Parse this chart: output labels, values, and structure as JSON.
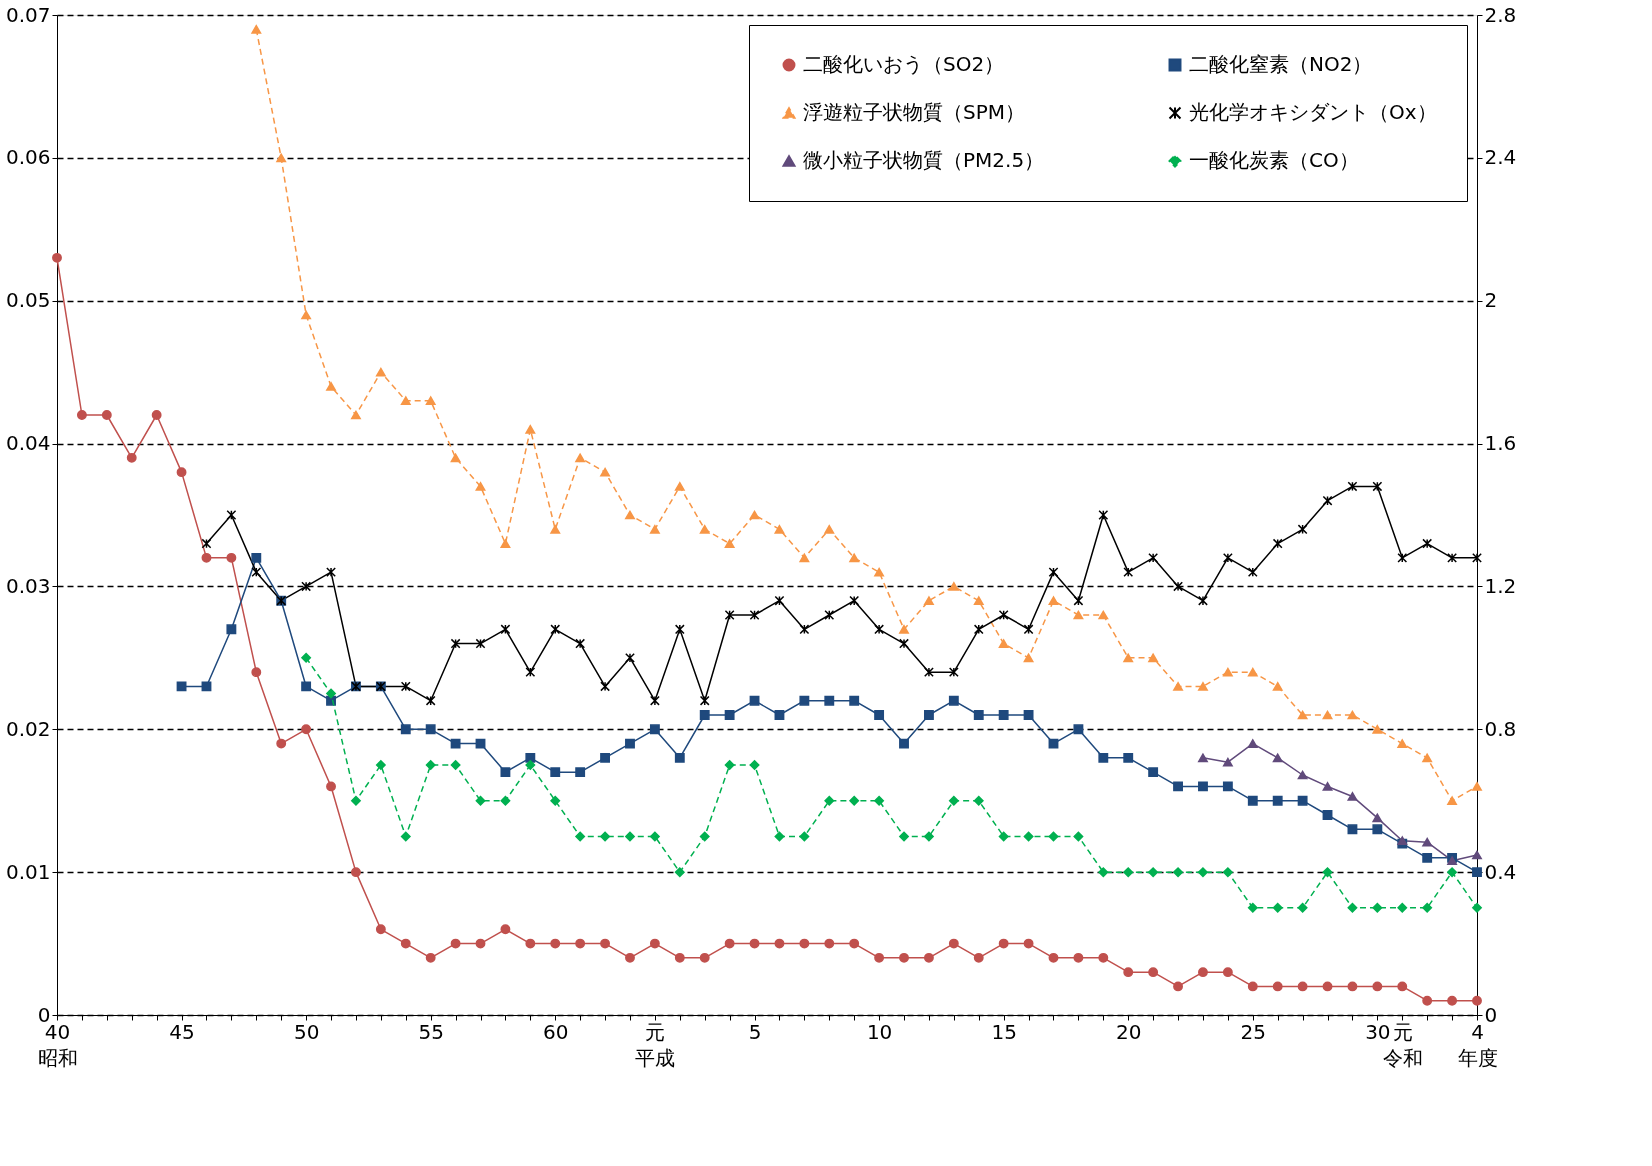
{
  "chart_data": {
    "type": "line",
    "categories": [
      "40昭和",
      null,
      null,
      null,
      null,
      "45",
      null,
      null,
      null,
      null,
      "50",
      null,
      null,
      null,
      null,
      "55",
      null,
      null,
      null,
      null,
      "60",
      null,
      null,
      null,
      "元平成",
      null,
      null,
      null,
      "5",
      null,
      null,
      null,
      null,
      "10",
      null,
      null,
      null,
      null,
      "15",
      null,
      null,
      null,
      null,
      "20",
      null,
      null,
      null,
      null,
      "25",
      null,
      null,
      null,
      null,
      "30",
      "元令和",
      null,
      null,
      "4年度"
    ],
    "ylim": [
      0,
      0.07
    ],
    "yticks": [
      0,
      0.01,
      0.02,
      0.03,
      0.04,
      0.05,
      0.06,
      0.07
    ],
    "y2lim": [
      0,
      2.8
    ],
    "y2ticks": [
      0,
      0.4,
      0.8,
      1.2,
      1.6,
      2,
      2.4,
      2.8
    ],
    "grid": "y",
    "legend": "top right",
    "series": [
      {
        "name": "二酸化いおう（SO2）",
        "color": "#c0504d",
        "marker": "circle",
        "line_style": "solid",
        "values": [
          0.053,
          0.042,
          0.042,
          0.039,
          0.042,
          0.038,
          0.032,
          0.032,
          0.024,
          0.019,
          0.02,
          0.016,
          0.01,
          0.006,
          0.005,
          0.004,
          0.005,
          0.005,
          0.006,
          0.005,
          0.005,
          0.005,
          0.005,
          0.004,
          0.005,
          0.004,
          0.004,
          0.005,
          0.005,
          0.005,
          0.005,
          0.005,
          0.005,
          0.004,
          0.004,
          0.004,
          0.005,
          0.004,
          0.005,
          0.005,
          0.004,
          0.004,
          0.004,
          0.003,
          0.003,
          0.002,
          0.003,
          0.003,
          0.002,
          0.002,
          0.002,
          0.002,
          0.002,
          0.002,
          0.002,
          0.001,
          0.001,
          0.001
        ]
      },
      {
        "name": "二酸化窒素（NO2）",
        "color": "#1f497d",
        "marker": "square",
        "line_style": "solid",
        "values": [
          null,
          null,
          null,
          null,
          null,
          0.023,
          0.023,
          0.027,
          0.032,
          0.029,
          0.023,
          0.022,
          0.023,
          0.023,
          0.02,
          0.02,
          0.019,
          0.019,
          0.017,
          0.018,
          0.017,
          0.017,
          0.018,
          0.019,
          0.02,
          0.018,
          0.021,
          0.021,
          0.022,
          0.021,
          0.022,
          0.022,
          0.022,
          0.021,
          0.019,
          0.021,
          0.022,
          0.021,
          0.021,
          0.021,
          0.019,
          0.02,
          0.018,
          0.018,
          0.017,
          0.016,
          0.016,
          0.016,
          0.015,
          0.015,
          0.015,
          0.014,
          0.013,
          0.013,
          0.012,
          0.011,
          0.011,
          0.01
        ]
      },
      {
        "name": "浮遊粒子状物質（SPM）",
        "color": "#f79646",
        "marker": "triangle",
        "line_style": "dashed",
        "values": [
          null,
          null,
          null,
          null,
          null,
          null,
          null,
          null,
          0.069,
          0.06,
          0.049,
          0.044,
          0.042,
          0.045,
          0.043,
          0.043,
          0.039,
          0.037,
          0.033,
          0.041,
          0.034,
          0.039,
          0.038,
          0.035,
          0.034,
          0.037,
          0.034,
          0.033,
          0.035,
          0.034,
          0.032,
          0.034,
          0.032,
          0.031,
          0.027,
          0.029,
          0.03,
          0.029,
          0.026,
          0.025,
          0.029,
          0.028,
          0.028,
          0.025,
          0.025,
          0.023,
          0.023,
          0.024,
          0.024,
          0.023,
          0.021,
          0.021,
          0.021,
          0.02,
          0.019,
          0.018,
          0.015,
          0.016
        ]
      },
      {
        "name": "光化学オキシダント（Ox）",
        "color": "#000000",
        "marker": "cross",
        "line_style": "solid",
        "values": [
          null,
          null,
          null,
          null,
          null,
          null,
          0.033,
          0.035,
          0.031,
          0.029,
          0.03,
          0.031,
          0.023,
          0.023,
          0.023,
          0.022,
          0.026,
          0.026,
          0.027,
          0.024,
          0.027,
          0.026,
          0.023,
          0.025,
          0.022,
          0.027,
          0.022,
          0.028,
          0.028,
          0.029,
          0.027,
          0.028,
          0.029,
          0.027,
          0.026,
          0.024,
          0.024,
          0.027,
          0.028,
          0.027,
          0.031,
          0.029,
          0.035,
          0.031,
          0.032,
          0.03,
          0.029,
          0.032,
          0.031,
          0.033,
          0.034,
          0.036,
          0.037,
          0.037,
          0.032,
          0.033,
          0.032,
          0.032
        ]
      },
      {
        "name": "微小粒子状物質（PM2.5）",
        "color": "#604a7b",
        "marker": "triangle",
        "line_style": "solid",
        "values": [
          null,
          null,
          null,
          null,
          null,
          null,
          null,
          null,
          null,
          null,
          null,
          null,
          null,
          null,
          null,
          null,
          null,
          null,
          null,
          null,
          null,
          null,
          null,
          null,
          null,
          null,
          null,
          null,
          null,
          null,
          null,
          null,
          null,
          null,
          null,
          null,
          null,
          null,
          null,
          null,
          null,
          null,
          null,
          null,
          null,
          null,
          0.018,
          0.0177,
          0.019,
          0.018,
          0.0168,
          0.016,
          0.0153,
          0.0138,
          0.0122,
          0.0121,
          0.0108,
          0.0112
        ]
      },
      {
        "name": "一酸化炭素（CO）",
        "color": "#00b050",
        "marker": "diamond",
        "line_style": "dashed",
        "axis": "y2",
        "values": [
          null,
          null,
          null,
          null,
          null,
          null,
          null,
          null,
          null,
          null,
          1.0,
          0.9,
          0.6,
          0.7,
          0.5,
          0.7,
          0.7,
          0.6,
          0.6,
          0.7,
          0.6,
          0.5,
          0.5,
          0.5,
          0.5,
          0.4,
          0.5,
          0.7,
          0.7,
          0.5,
          0.5,
          0.6,
          0.6,
          0.6,
          0.5,
          0.5,
          0.6,
          0.6,
          0.5,
          0.5,
          0.5,
          0.5,
          0.4,
          0.4,
          0.4,
          0.4,
          0.4,
          0.4,
          0.3,
          0.3,
          0.3,
          0.4,
          0.3,
          0.3,
          0.3,
          0.3,
          0.4,
          0.3
        ]
      }
    ]
  }
}
